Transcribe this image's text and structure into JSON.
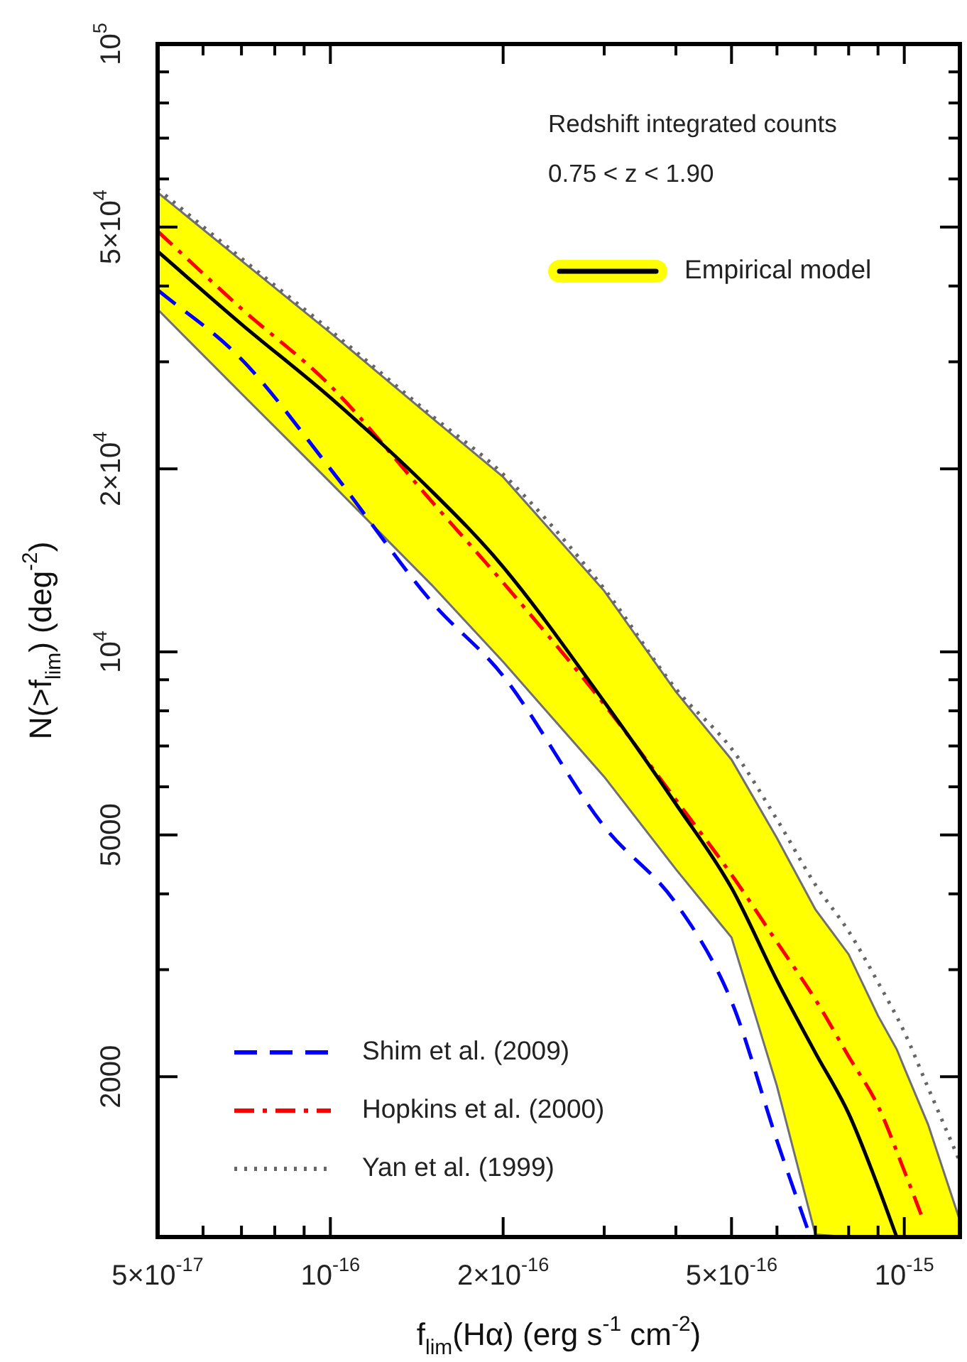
{
  "chart_data": {
    "type": "line",
    "xlabel": "f$_{lim}$(Hα) (erg s$^{-1}$ cm$^{-2}$)",
    "ylabel": "N(>f$_{lim}$) (deg$^{-2}$)",
    "annotations": [
      "Redshift integrated counts",
      "0.75 < z < 1.90"
    ],
    "log": "xy",
    "grid": false,
    "legend": "bottom left",
    "marker": "none",
    "xlim": [
      5e-17,
      1.25e-15
    ],
    "ylim": [
      1090,
      100000
    ],
    "xticks": [
      {
        "value": 5e-17,
        "label": "5×10$^{-17}$"
      },
      {
        "value": 6e-17,
        "label": null
      },
      {
        "value": 7e-17,
        "label": null
      },
      {
        "value": 8e-17,
        "label": null
      },
      {
        "value": 9e-17,
        "label": null
      },
      {
        "value": 1e-16,
        "label": "10$^{-16}$"
      },
      {
        "value": 2e-16,
        "label": "2×10$^{-16}$"
      },
      {
        "value": 3e-16,
        "label": null
      },
      {
        "value": 4e-16,
        "label": null
      },
      {
        "value": 5e-16,
        "label": "5×10$^{-16}$"
      },
      {
        "value": 6e-16,
        "label": null
      },
      {
        "value": 7e-16,
        "label": null
      },
      {
        "value": 8e-16,
        "label": null
      },
      {
        "value": 9e-16,
        "label": null
      },
      {
        "value": 1e-15,
        "label": "10$^{-15}$"
      }
    ],
    "yticks": [
      {
        "value": 2000,
        "label": "2000"
      },
      {
        "value": 3000,
        "label": null
      },
      {
        "value": 4000,
        "label": null
      },
      {
        "value": 5000,
        "label": "5000"
      },
      {
        "value": 6000,
        "label": null
      },
      {
        "value": 7000,
        "label": null
      },
      {
        "value": 8000,
        "label": null
      },
      {
        "value": 9000,
        "label": null
      },
      {
        "value": 10000,
        "label": "10$^{4}$"
      },
      {
        "value": 20000,
        "label": "2×10$^{4}$"
      },
      {
        "value": 30000,
        "label": null
      },
      {
        "value": 40000,
        "label": null
      },
      {
        "value": 50000,
        "label": "5×10$^{4}$"
      },
      {
        "value": 60000,
        "label": null
      },
      {
        "value": 70000,
        "label": null
      },
      {
        "value": 80000,
        "label": null
      },
      {
        "value": 90000,
        "label": null
      },
      {
        "value": 100000,
        "label": "10$^{5}$"
      }
    ],
    "series": [
      {
        "name": "Empirical model",
        "color": "#000000",
        "line_style": "solid",
        "x": [
          5e-17,
          7e-17,
          1e-16,
          1.5e-16,
          2e-16,
          3e-16,
          4e-16,
          5e-16,
          6e-16,
          7e-16,
          8e-16,
          9e-16,
          9.7e-16,
          1e-15,
          1.1e-15,
          1.25e-15
        ],
        "values": [
          45600,
          34600,
          26200,
          18400,
          13800,
          8280,
          5620,
          4090,
          2880,
          2190,
          1740,
          1320,
          1090,
          null,
          null,
          null
        ],
        "lower": [
          36600,
          26600,
          19000,
          12900,
          9630,
          6230,
          4390,
          3390,
          1930,
          1100,
          1090,
          1090,
          1090,
          1090,
          1090,
          1090
        ],
        "upper": [
          57000,
          44000,
          33500,
          24300,
          19400,
          12600,
          8600,
          6650,
          4940,
          3770,
          3180,
          2520,
          2220,
          2070,
          1670,
          1160
        ]
      },
      {
        "name": "Shim et al. (2009)",
        "color": "#0000ff",
        "line_style": "dashed",
        "x": [
          5e-17,
          7e-17,
          1e-16,
          1.5e-16,
          2e-16,
          3e-16,
          4e-16,
          5e-16,
          6e-16,
          6.86e-16
        ],
        "values": [
          39400,
          30300,
          20000,
          12100,
          9130,
          5160,
          3860,
          2660,
          1570,
          1090
        ]
      },
      {
        "name": "Hopkins et al. (2000)",
        "color": "#ff0000",
        "line_style": "dashdot",
        "x": [
          5e-17,
          7e-17,
          1e-16,
          1.5e-16,
          2e-16,
          3e-16,
          4e-16,
          5e-16,
          6e-16,
          7e-16,
          8e-16,
          9e-16,
          1e-15,
          1.08e-15
        ],
        "values": [
          49200,
          36700,
          27400,
          17700,
          13000,
          8200,
          5710,
          4300,
          3330,
          2680,
          2160,
          1790,
          1400,
          1160
        ]
      },
      {
        "name": "Yan et al. (1999)",
        "color": "#666666",
        "line_style": "dotted",
        "x": [
          5e-17,
          7e-17,
          1e-16,
          1.5e-16,
          2e-16,
          3e-16,
          4e-16,
          5e-16,
          6e-16,
          7e-16,
          8e-16,
          9e-16,
          1e-15,
          1.1e-15,
          1.25e-15
        ],
        "values": [
          57800,
          44400,
          33800,
          24500,
          19600,
          12700,
          8690,
          6930,
          5300,
          4140,
          3470,
          2860,
          2370,
          1920,
          1450
        ]
      }
    ]
  }
}
